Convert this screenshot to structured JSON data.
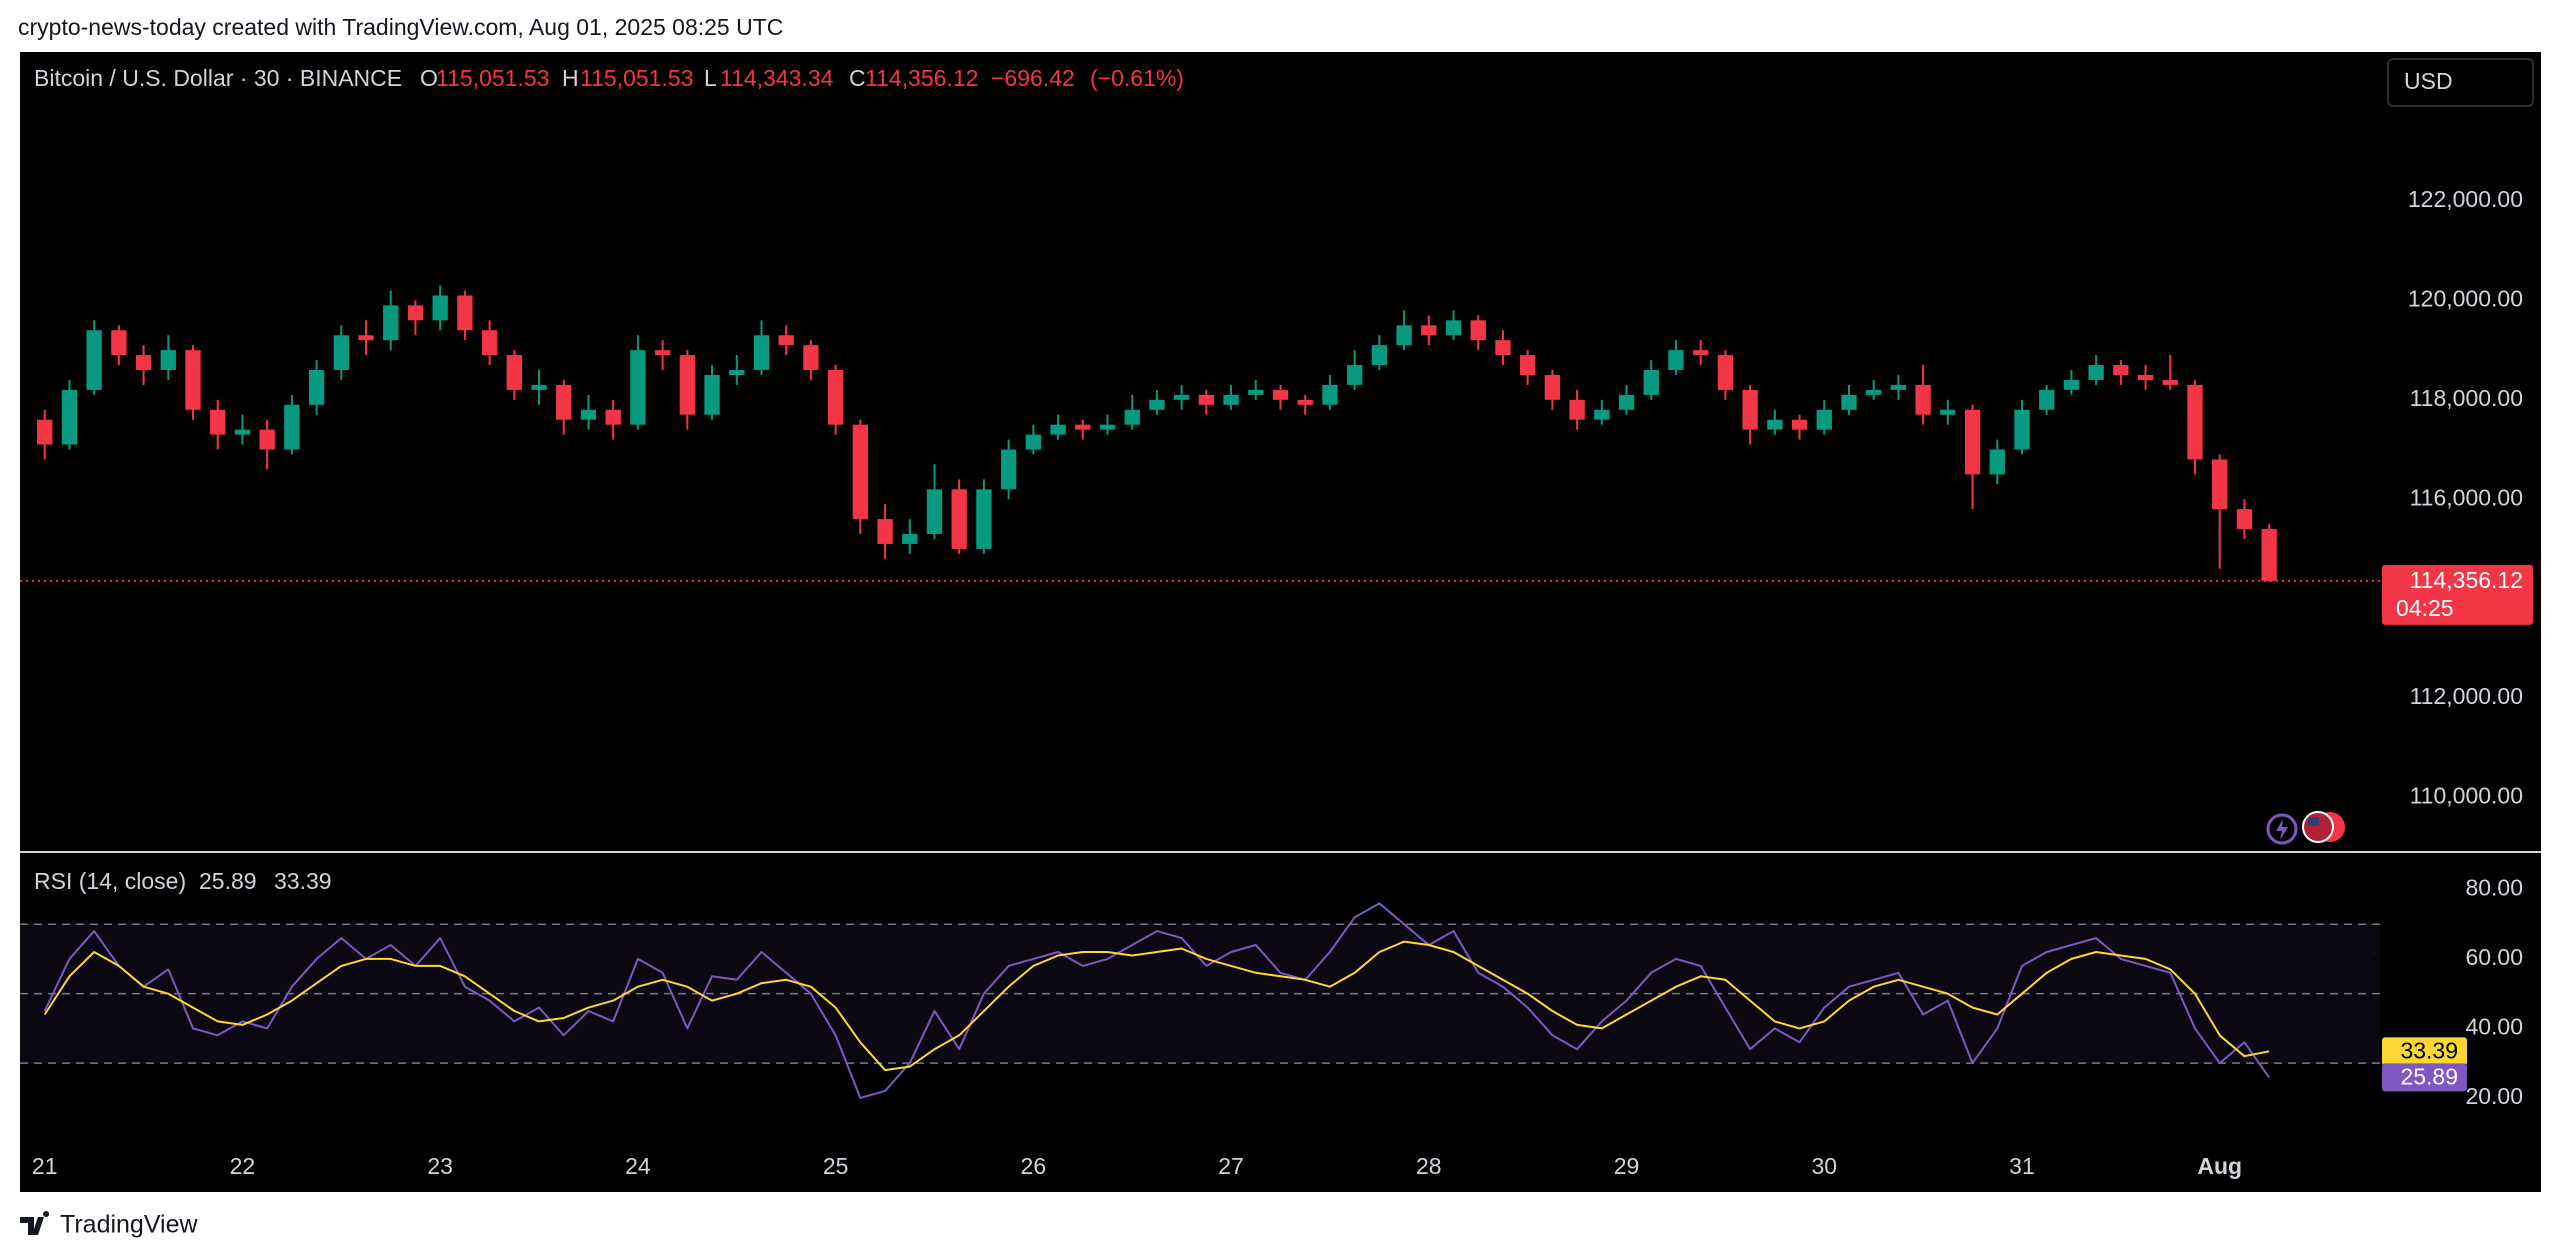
{
  "watermark": "crypto-news-today created with TradingView.com, Aug 01, 2025 08:25 UTC",
  "brand": "TradingView",
  "currency": "USD",
  "chart_data": {
    "type": "candlestick",
    "title": "Bitcoin / U.S. Dollar · 30 · BINANCE",
    "ohlc_legend": [
      {
        "key": "O",
        "value": 115051.53,
        "label": "115,051.53"
      },
      {
        "key": "H",
        "value": 115051.53,
        "label": "115,051.53"
      },
      {
        "key": "L",
        "value": 114343.34,
        "label": "114,343.34"
      },
      {
        "key": "C",
        "value": 114356.12,
        "label": "114,356.12"
      }
    ],
    "change": {
      "value": -696.42,
      "label": "−696.42"
    },
    "change_percent": {
      "value": -0.61,
      "label": "(−0.61%)"
    },
    "up_color": "#089981",
    "down_color": "#f23645",
    "last_price": {
      "value": 114356.12,
      "label": "114,356.12"
    },
    "countdown": "04:25",
    "xlim": [
      -1,
      94
    ],
    "xticks": [
      {
        "value": 0,
        "label": "21"
      },
      {
        "value": 8,
        "label": "22"
      },
      {
        "value": 16,
        "label": "23"
      },
      {
        "value": 24,
        "label": "24"
      },
      {
        "value": 32,
        "label": "25"
      },
      {
        "value": 40,
        "label": "26"
      },
      {
        "value": 48,
        "label": "27"
      },
      {
        "value": 56,
        "label": "28"
      },
      {
        "value": 64,
        "label": "29"
      },
      {
        "value": 72,
        "label": "30"
      },
      {
        "value": 80,
        "label": "31"
      },
      {
        "value": 88,
        "label": "Aug"
      }
    ],
    "ylim": [
      108900,
      125000
    ],
    "yticks": [
      {
        "value": 110000,
        "label": "110,000.00"
      },
      {
        "value": 112000,
        "label": "112,000.00"
      },
      {
        "value": 116000,
        "label": "116,000.00"
      },
      {
        "value": 118000,
        "label": "118,000.00"
      },
      {
        "value": 120000,
        "label": "120,000.00"
      },
      {
        "value": 122000,
        "label": "122,000.00"
      }
    ],
    "ohlc": [
      [
        117600,
        117800,
        116800,
        117100
      ],
      [
        117100,
        118400,
        117000,
        118200
      ],
      [
        118200,
        119600,
        118100,
        119400
      ],
      [
        119400,
        119500,
        118700,
        118900
      ],
      [
        118900,
        119100,
        118300,
        118600
      ],
      [
        118600,
        119300,
        118400,
        119000
      ],
      [
        119000,
        119100,
        117600,
        117800
      ],
      [
        117800,
        118000,
        117000,
        117300
      ],
      [
        117300,
        117700,
        117100,
        117400
      ],
      [
        117400,
        117600,
        116600,
        117000
      ],
      [
        117000,
        118100,
        116900,
        117900
      ],
      [
        117900,
        118800,
        117700,
        118600
      ],
      [
        118600,
        119500,
        118400,
        119300
      ],
      [
        119300,
        119600,
        118900,
        119200
      ],
      [
        119200,
        120200,
        119000,
        119900
      ],
      [
        119900,
        120000,
        119300,
        119600
      ],
      [
        119600,
        120300,
        119400,
        120100
      ],
      [
        120100,
        120200,
        119200,
        119400
      ],
      [
        119400,
        119600,
        118700,
        118900
      ],
      [
        118900,
        119000,
        118000,
        118200
      ],
      [
        118200,
        118600,
        117900,
        118300
      ],
      [
        118300,
        118400,
        117300,
        117600
      ],
      [
        117600,
        118100,
        117400,
        117800
      ],
      [
        117800,
        118000,
        117200,
        117500
      ],
      [
        117500,
        119300,
        117400,
        119000
      ],
      [
        119000,
        119200,
        118600,
        118900
      ],
      [
        118900,
        119000,
        117400,
        117700
      ],
      [
        117700,
        118700,
        117600,
        118500
      ],
      [
        118500,
        118900,
        118300,
        118600
      ],
      [
        118600,
        119600,
        118500,
        119300
      ],
      [
        119300,
        119500,
        118900,
        119100
      ],
      [
        119100,
        119200,
        118400,
        118600
      ],
      [
        118600,
        118700,
        117300,
        117500
      ],
      [
        117500,
        117600,
        115300,
        115600
      ],
      [
        115600,
        115900,
        114800,
        115100
      ],
      [
        115100,
        115600,
        114900,
        115300
      ],
      [
        115300,
        116700,
        115200,
        116200
      ],
      [
        116200,
        116400,
        114900,
        115000
      ],
      [
        115000,
        116400,
        114900,
        116200
      ],
      [
        116200,
        117200,
        116000,
        117000
      ],
      [
        117000,
        117500,
        116900,
        117300
      ],
      [
        117300,
        117700,
        117200,
        117500
      ],
      [
        117500,
        117600,
        117200,
        117400
      ],
      [
        117400,
        117700,
        117300,
        117500
      ],
      [
        117500,
        118100,
        117400,
        117800
      ],
      [
        117800,
        118200,
        117700,
        118000
      ],
      [
        118000,
        118300,
        117800,
        118100
      ],
      [
        118100,
        118200,
        117700,
        117900
      ],
      [
        117900,
        118300,
        117800,
        118100
      ],
      [
        118100,
        118400,
        118000,
        118200
      ],
      [
        118200,
        118300,
        117800,
        118000
      ],
      [
        118000,
        118100,
        117700,
        117900
      ],
      [
        117900,
        118500,
        117800,
        118300
      ],
      [
        118300,
        119000,
        118200,
        118700
      ],
      [
        118700,
        119300,
        118600,
        119100
      ],
      [
        119100,
        119800,
        119000,
        119500
      ],
      [
        119500,
        119700,
        119100,
        119300
      ],
      [
        119300,
        119800,
        119200,
        119600
      ],
      [
        119600,
        119700,
        119000,
        119200
      ],
      [
        119200,
        119400,
        118700,
        118900
      ],
      [
        118900,
        119000,
        118300,
        118500
      ],
      [
        118500,
        118600,
        117800,
        118000
      ],
      [
        118000,
        118200,
        117400,
        117600
      ],
      [
        117600,
        118000,
        117500,
        117800
      ],
      [
        117800,
        118300,
        117700,
        118100
      ],
      [
        118100,
        118800,
        118000,
        118600
      ],
      [
        118600,
        119200,
        118500,
        119000
      ],
      [
        119000,
        119200,
        118700,
        118900
      ],
      [
        118900,
        119000,
        118000,
        118200
      ],
      [
        118200,
        118300,
        117100,
        117400
      ],
      [
        117400,
        117800,
        117300,
        117600
      ],
      [
        117600,
        117700,
        117200,
        117400
      ],
      [
        117400,
        118000,
        117300,
        117800
      ],
      [
        117800,
        118300,
        117700,
        118100
      ],
      [
        118100,
        118400,
        118000,
        118200
      ],
      [
        118200,
        118500,
        118000,
        118300
      ],
      [
        118300,
        118700,
        117500,
        117700
      ],
      [
        117700,
        118000,
        117500,
        117800
      ],
      [
        117800,
        117900,
        115800,
        116500
      ],
      [
        116500,
        117200,
        116300,
        117000
      ],
      [
        117000,
        118000,
        116900,
        117800
      ],
      [
        117800,
        118300,
        117700,
        118200
      ],
      [
        118200,
        118600,
        118100,
        118400
      ],
      [
        118400,
        118900,
        118300,
        118700
      ],
      [
        118700,
        118800,
        118300,
        118500
      ],
      [
        118500,
        118700,
        118200,
        118400
      ],
      [
        118400,
        118900,
        118200,
        118300
      ],
      [
        118300,
        118400,
        116500,
        116800
      ],
      [
        116800,
        116900,
        114600,
        115800
      ],
      [
        115800,
        116000,
        115200,
        115400
      ],
      [
        115400,
        115500,
        114343.34,
        114356.12
      ]
    ],
    "rsi": {
      "name": "RSI (14, close)",
      "color": "#7e57c2",
      "ma_color": "#fdd835",
      "ylim": [
        7,
        90.5
      ],
      "yticks": [
        {
          "value": 20,
          "label": "20.00"
        },
        {
          "value": 40,
          "label": "40.00"
        },
        {
          "value": 60,
          "label": "60.00"
        },
        {
          "value": 80,
          "label": "80.00"
        }
      ],
      "levels": [
        30,
        50,
        70
      ],
      "values": [
        45,
        60,
        68,
        58,
        52,
        57,
        40,
        38,
        42,
        40,
        52,
        60,
        66,
        60,
        64,
        58,
        66,
        52,
        48,
        42,
        46,
        38,
        45,
        42,
        60,
        56,
        40,
        55,
        54,
        62,
        56,
        50,
        38,
        20,
        22,
        30,
        45,
        34,
        50,
        58,
        60,
        62,
        58,
        60,
        64,
        68,
        66,
        58,
        62,
        64,
        56,
        54,
        62,
        72,
        76,
        70,
        64,
        68,
        56,
        52,
        46,
        38,
        34,
        42,
        48,
        56,
        60,
        58,
        46,
        34,
        40,
        36,
        46,
        52,
        54,
        56,
        44,
        48,
        30,
        40,
        58,
        62,
        64,
        66,
        60,
        58,
        56,
        40,
        30,
        36,
        25.89
      ],
      "ma_values": [
        44,
        55,
        62,
        58,
        52,
        50,
        46,
        42,
        41,
        44,
        48,
        53,
        58,
        60,
        60,
        58,
        58,
        55,
        50,
        45,
        42,
        43,
        46,
        48,
        52,
        54,
        52,
        48,
        50,
        53,
        54,
        52,
        46,
        36,
        28,
        29,
        34,
        38,
        45,
        52,
        58,
        61,
        62,
        62,
        61,
        62,
        63,
        60,
        58,
        56,
        55,
        54,
        52,
        56,
        62,
        65,
        64,
        62,
        58,
        54,
        50,
        45,
        41,
        40,
        44,
        48,
        52,
        55,
        54,
        48,
        42,
        40,
        42,
        48,
        52,
        54,
        52,
        50,
        46,
        44,
        50,
        56,
        60,
        62,
        61,
        60,
        57,
        50,
        38,
        32,
        33.39
      ]
    }
  }
}
